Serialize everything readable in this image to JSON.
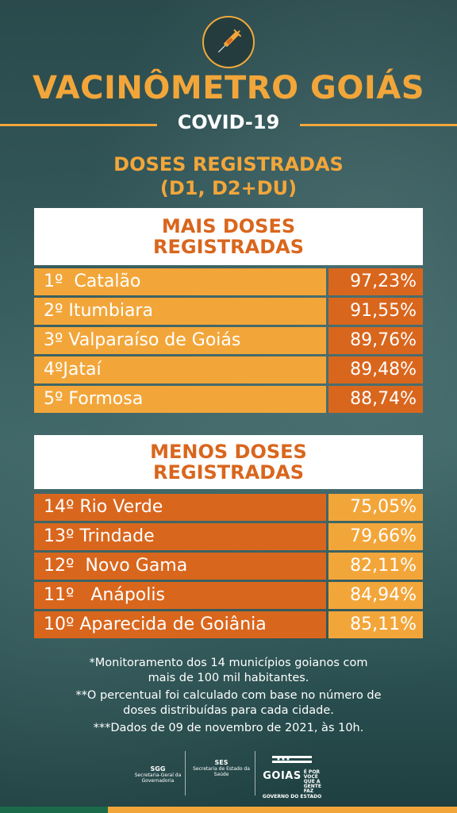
{
  "header": {
    "title": "VACINÔMETRO GOIÁS",
    "subtitle": "COVID-19",
    "section_line1": "DOSES REGISTRADAS",
    "section_line2": "(D1, D2+DU)"
  },
  "top_table": {
    "heading_line1": "MAIS DOSES",
    "heading_line2": "REGISTRADAS",
    "rows": [
      {
        "rank": "1º",
        "city": "Catalão",
        "pct": "97,23%"
      },
      {
        "rank": "2º",
        "city": "Itumbiara",
        "pct": "91,55%"
      },
      {
        "rank": "3º",
        "city": "Valparaíso de Goiás",
        "pct": "89,76%"
      },
      {
        "rank": "4º",
        "city": "Jataí",
        "pct": "89,48%"
      },
      {
        "rank": "5º",
        "city": "Formosa",
        "pct": "88,74%"
      }
    ]
  },
  "bottom_table": {
    "heading_line1": "MENOS DOSES",
    "heading_line2": "REGISTRADAS",
    "rows": [
      {
        "rank": "14º",
        "city": "Rio Verde",
        "pct": "75,05%"
      },
      {
        "rank": "13º",
        "city": "Trindade",
        "pct": "79,66%"
      },
      {
        "rank": "12º",
        "city": "Novo Gama",
        "pct": "82,11%"
      },
      {
        "rank": "11º",
        "city": "Anápolis",
        "pct": "84,94%"
      },
      {
        "rank": "10º",
        "city": "Aparecida de Goiânia",
        "pct": "85,11%"
      }
    ]
  },
  "notes": [
    "*Monitoramento dos 14 municípios goianos com mais de 100 mil habitantes.",
    "**O percentual foi calculado com base no número de doses distribuídas para cada cidade.",
    "***Dados de 09 de novembro de 2021, às 10h."
  ],
  "footer": {
    "sgg_abbr": "SGG",
    "sgg_full": "Secretaria-Geral da Governadoria",
    "ses_abbr": "SES",
    "ses_full": "Secretaria de Estado da Saúde",
    "goias": "GOIAS",
    "slogan": "É POR VOCÊ QUE A GENTE FAZ",
    "gov": "GOVERNO DO ESTADO"
  },
  "colors": {
    "orange_light": "#f2a63a",
    "orange_dark": "#d9661d",
    "background": "#33585a"
  },
  "icons": {
    "logo": "syringe-icon"
  }
}
